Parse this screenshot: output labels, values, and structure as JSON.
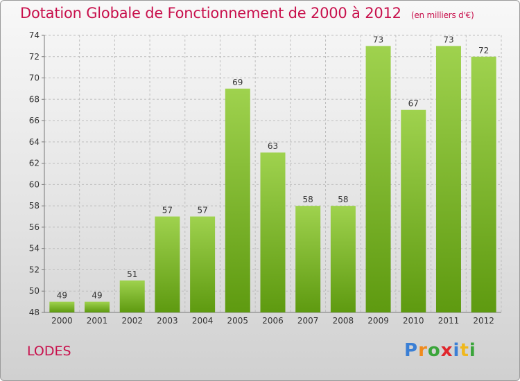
{
  "header": {
    "title": "Dotation Globale de Fonctionnement de 2000 à 2012",
    "unit": "(en milliers d'€)"
  },
  "footer": {
    "commune": "LODES",
    "brand": "Proxiti"
  },
  "colors": {
    "title": "#c8104c",
    "bar_light": "#9fd24e",
    "bar_dark": "#5e9a10",
    "grid": "#bdbdbd"
  },
  "chart_data": {
    "type": "bar",
    "categories": [
      "2000",
      "2001",
      "2002",
      "2003",
      "2004",
      "2005",
      "2006",
      "2007",
      "2008",
      "2009",
      "2010",
      "2011",
      "2012"
    ],
    "values": [
      49,
      49,
      51,
      57,
      57,
      69,
      63,
      58,
      58,
      73,
      67,
      73,
      72
    ],
    "ylim": [
      48,
      74
    ],
    "yticks": [
      48,
      50,
      52,
      54,
      56,
      58,
      60,
      62,
      64,
      66,
      68,
      70,
      72,
      74
    ],
    "grid": true,
    "data_labels": true,
    "title": "Dotation Globale de Fonctionnement de 2000 à 2012",
    "xlabel": "",
    "ylabel": ""
  }
}
